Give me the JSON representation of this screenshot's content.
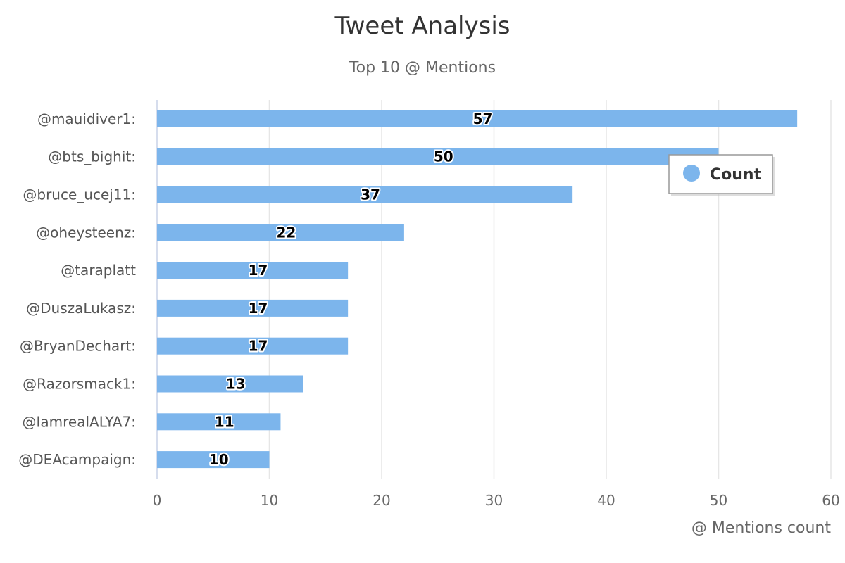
{
  "chart_data": {
    "type": "bar",
    "orientation": "horizontal",
    "title": "Tweet Analysis",
    "subtitle": "Top 10 @ Mentions",
    "categories": [
      "@mauidiver1:",
      "@bts_bighit:",
      "@bruce_ucej11:",
      "@oheysteenz:",
      "@taraplatt",
      "@DuszaLukasz:",
      "@BryanDechart:",
      "@Razorsmack1:",
      "@IamrealALYA7:",
      "@DEAcampaign:"
    ],
    "series": [
      {
        "name": "Count",
        "values": [
          57,
          50,
          37,
          22,
          17,
          17,
          17,
          13,
          11,
          10
        ],
        "color": "#7cb5ec"
      }
    ],
    "xlabel": "@ Mentions count",
    "ylabel": "",
    "xlim": [
      0,
      60
    ],
    "ticks": [
      "0",
      "10",
      "20",
      "30",
      "40",
      "50",
      "60"
    ],
    "grid": true,
    "data_labels": true,
    "legend_position": "top-right"
  }
}
